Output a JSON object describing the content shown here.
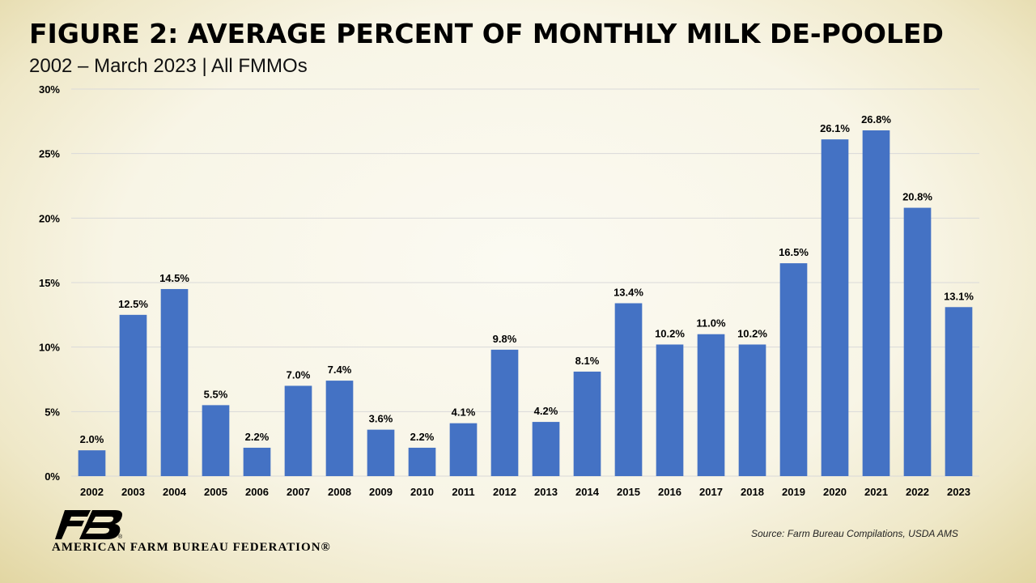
{
  "header": {
    "title": "FIGURE 2: AVERAGE PERCENT OF MONTHLY MILK DE-POOLED",
    "subtitle": "2002 – March 2023 | All FMMOs"
  },
  "chart_data": {
    "type": "bar",
    "title": "FIGURE 2: AVERAGE PERCENT OF MONTHLY MILK DE-POOLED",
    "subtitle": "2002 – March 2023 | All FMMOs",
    "xlabel": "",
    "ylabel": "",
    "ylim": [
      0,
      30
    ],
    "yticks": [
      "0%",
      "5%",
      "10%",
      "15%",
      "20%",
      "25%",
      "30%"
    ],
    "ytick_values": [
      0,
      5,
      10,
      15,
      20,
      25,
      30
    ],
    "grid": true,
    "legend": "none",
    "bar_color": "#4472c4",
    "categories": [
      "2002",
      "2003",
      "2004",
      "2005",
      "2006",
      "2007",
      "2008",
      "2009",
      "2010",
      "2011",
      "2012",
      "2013",
      "2014",
      "2015",
      "2016",
      "2017",
      "2018",
      "2019",
      "2020",
      "2021",
      "2022",
      "2023"
    ],
    "values": [
      2.0,
      12.5,
      14.5,
      5.5,
      2.2,
      7.0,
      7.4,
      3.6,
      2.2,
      4.1,
      9.8,
      4.2,
      8.1,
      13.4,
      10.2,
      11.0,
      10.2,
      16.5,
      26.1,
      26.8,
      20.8,
      13.1
    ],
    "data_labels": [
      "2.0%",
      "12.5%",
      "14.5%",
      "5.5%",
      "2.2%",
      "7.0%",
      "7.4%",
      "3.6%",
      "2.2%",
      "4.1%",
      "9.8%",
      "4.2%",
      "8.1%",
      "13.4%",
      "10.2%",
      "11.0%",
      "10.2%",
      "16.5%",
      "26.1%",
      "26.8%",
      "20.8%",
      "13.1%"
    ]
  },
  "footer": {
    "source": "Source: Farm Bureau Compilations, USDA AMS",
    "organization": "AMERICAN FARM BUREAU FEDERATION®",
    "logo_text": "FB"
  },
  "colors": {
    "bar": "#4472c4",
    "grid": "#d9d9d9",
    "logo": "#000000",
    "text": "#000000"
  }
}
